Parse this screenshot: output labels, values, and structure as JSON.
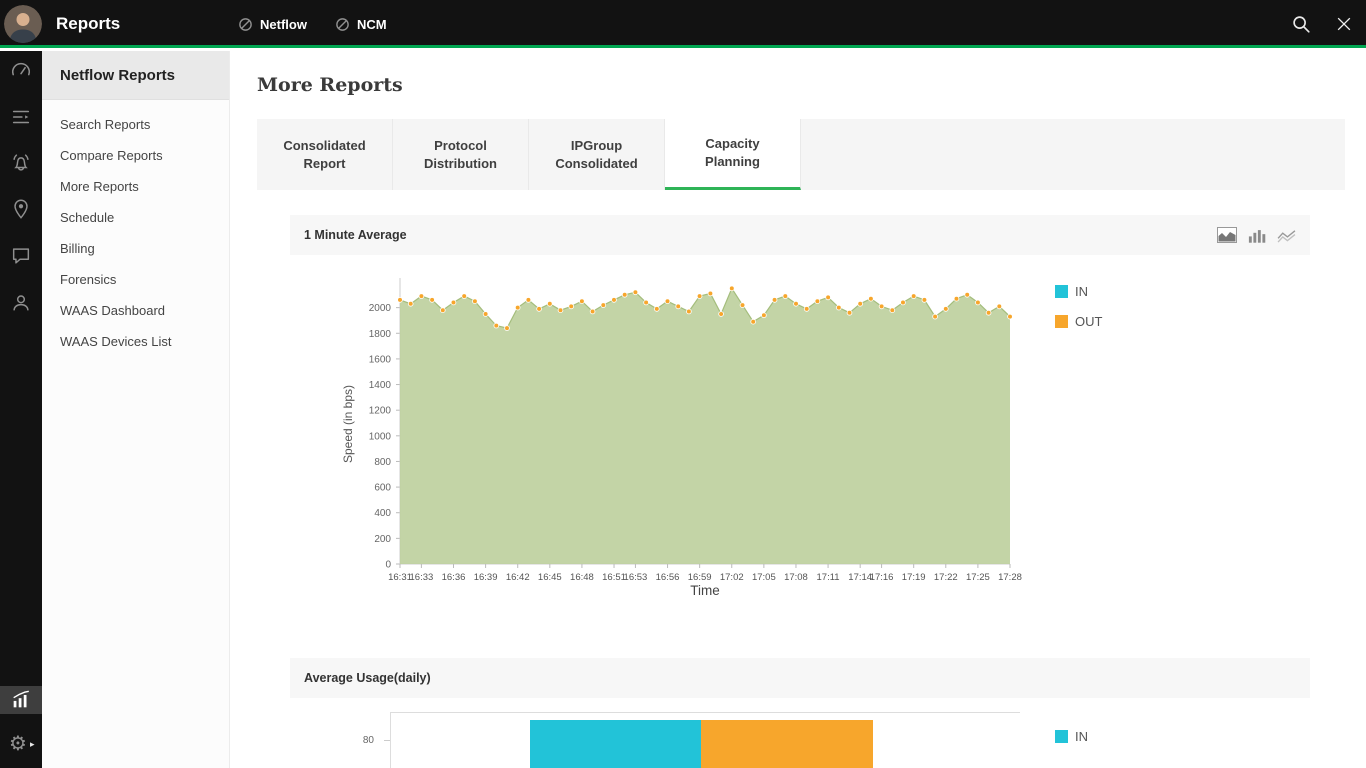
{
  "topbar": {
    "title": "Reports",
    "nav_tabs": [
      {
        "label": "Netflow"
      },
      {
        "label": "NCM"
      }
    ],
    "icons": [
      "netflow-module-icon",
      "ncm-module-icon",
      "search-icon",
      "close-icon"
    ]
  },
  "rail": {
    "icons": [
      "user-avatar",
      "dashboard-gauge-icon",
      "inventory-list-icon",
      "alarm-bell-icon",
      "maps-pin-icon",
      "chat-icon",
      "users-icon",
      "analytics-chart-icon",
      "settings-gear-icon"
    ],
    "active_icon": "analytics-chart-icon"
  },
  "sidebar": {
    "title": "Netflow Reports",
    "items": [
      {
        "label": "Search Reports"
      },
      {
        "label": "Compare Reports"
      },
      {
        "label": "More Reports"
      },
      {
        "label": "Schedule"
      },
      {
        "label": "Billing"
      },
      {
        "label": "Forensics"
      },
      {
        "label": "WAAS Dashboard"
      },
      {
        "label": "WAAS Devices List"
      }
    ]
  },
  "main": {
    "title": "More Reports",
    "tabs": [
      {
        "label": "Consolidated Report",
        "active": false
      },
      {
        "label": "Protocol Distribution",
        "active": false
      },
      {
        "label": "IPGroup Consolidated",
        "active": false
      },
      {
        "label": "Capacity Planning",
        "active": true
      }
    ]
  },
  "colors": {
    "topbar_accent_green": "#00a651",
    "tab_active_underline": "#2fb457",
    "in_cyan": "#22c3d8",
    "out_orange": "#f7a62c",
    "area_fill_green": "#bed09e"
  },
  "chart_data": [
    {
      "type": "area",
      "title": "1 Minute Average",
      "xlabel": "Time",
      "ylabel": "Speed (in bps)",
      "ylim": [
        0,
        2200
      ],
      "yticks": [
        0,
        200,
        400,
        600,
        800,
        1000,
        1200,
        1400,
        1600,
        1800,
        2000
      ],
      "x_tick_labels": [
        "16:31",
        "16:33",
        "16:36",
        "16:39",
        "16:42",
        "16:45",
        "16:48",
        "16:51",
        "16:53",
        "16:56",
        "16:59",
        "17:02",
        "17:05",
        "17:08",
        "17:11",
        "17:14",
        "17:16",
        "17:19",
        "17:22",
        "17:25",
        "17:28"
      ],
      "x_interval_minutes": 1,
      "values": [
        2060,
        2030,
        2090,
        2060,
        1980,
        2040,
        2090,
        2050,
        1950,
        1860,
        1840,
        2000,
        2060,
        1990,
        2030,
        1980,
        2010,
        2050,
        1970,
        2020,
        2060,
        2100,
        2120,
        2040,
        1990,
        2050,
        2010,
        1970,
        2090,
        2110,
        1950,
        2150,
        2020,
        1890,
        1940,
        2060,
        2090,
        2030,
        1990,
        2050,
        2080,
        2000,
        1960,
        2030,
        2070,
        2010,
        1980,
        2040,
        2090,
        2060,
        1930,
        1990,
        2070,
        2100,
        2040,
        1960,
        2010,
        1930
      ],
      "area_fill": "#bed09e",
      "area_stroke": "#a4bd7c",
      "dot_color": "#f7a62c",
      "legend": [
        {
          "name": "IN",
          "color": "#22c3d8"
        },
        {
          "name": "OUT",
          "color": "#f7a62c"
        }
      ],
      "toolbar_icons": [
        "area-chart-icon",
        "bar-chart-icon",
        "line-chart-icon"
      ],
      "legend_position": "right",
      "grid": false
    },
    {
      "type": "bar",
      "title": "Average Usage(daily)",
      "yticks": [
        80
      ],
      "segments": [
        {
          "name": "IN",
          "color": "#22c3d8"
        },
        {
          "name": "OUT",
          "color": "#f7a62c"
        }
      ],
      "legend": [
        {
          "name": "IN",
          "color": "#22c3d8"
        }
      ],
      "legend_position": "right"
    }
  ]
}
